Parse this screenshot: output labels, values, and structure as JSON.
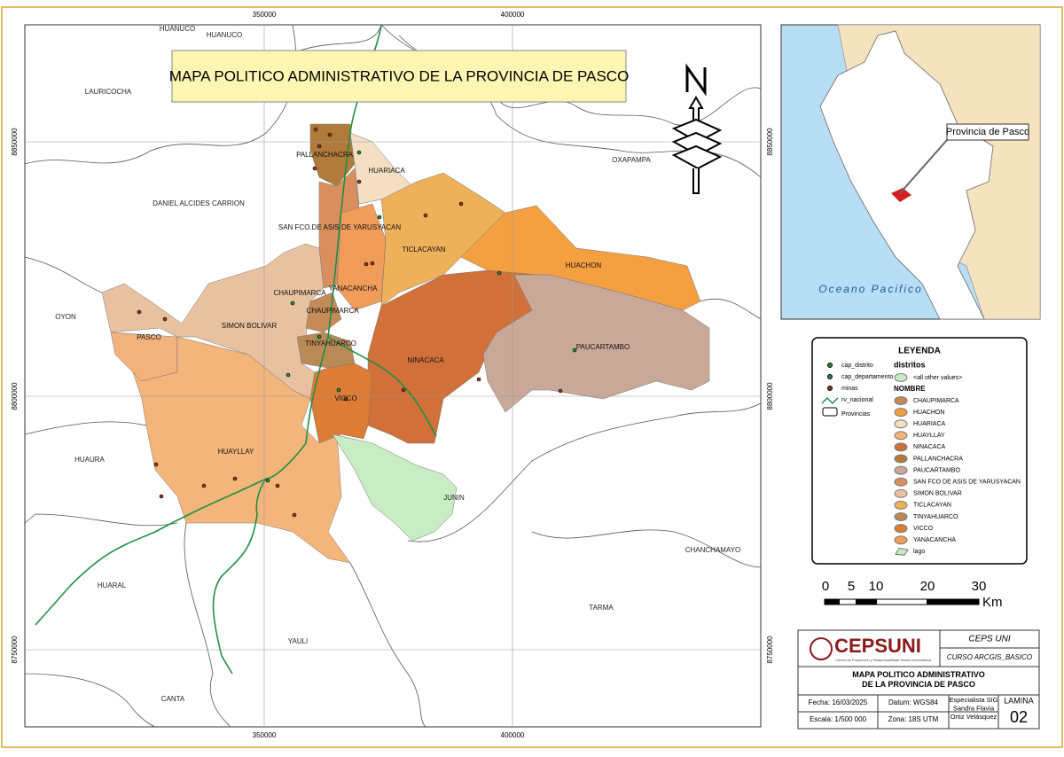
{
  "title": "MAPA POLITICO ADMINISTRATIVO DE LA PROVINCIA DE PASCO",
  "grid_labels": {
    "top": [
      "350000",
      "400000"
    ],
    "bottom": [
      "350000",
      "400000"
    ],
    "left": [
      "8850000",
      "8800000",
      "8750000"
    ],
    "right": [
      "8850000",
      "8800000",
      "8750000"
    ]
  },
  "neighbors": [
    "HUANUCO",
    "HUANUCO",
    "LAURICOCHA",
    "DANIEL ALCIDES CARRION",
    "OXAPAMPA",
    "OYON",
    "HUAURA",
    "HUARAL",
    "CANTA",
    "YAULI",
    "TARMA",
    "CHANCHAMAYO",
    "JUNIN"
  ],
  "districts": [
    "PALLANCHACRA",
    "HUARIACA",
    "SAN FCO.DE ASIS DE YARUSYACAN",
    "TICLACAYAN",
    "HUACHON",
    "CHAUPIMARCA",
    "YANACANCHA",
    "CHAUPIMARCA",
    "SIMON BOLIVAR",
    "PASCO",
    "TINYAHUARCO",
    "NINACACA",
    "PAUCARTAMBO",
    "VICCO",
    "HUAYLLAY"
  ],
  "inset": {
    "ocean": "Oceano Pacifico",
    "callout": "Provincia de Pasco"
  },
  "legend": {
    "title": "LEYENDA",
    "items": [
      "cap_distrito",
      "cap_departamento",
      "minas",
      "rv_nacional",
      "Provincias"
    ],
    "layer": "distritos",
    "other": "<all other values>",
    "field": "NOMBRE",
    "classes": [
      {
        "name": "CHAUPIMARCA",
        "color": "#c48a58"
      },
      {
        "name": "HUACHON",
        "color": "#f4a040"
      },
      {
        "name": "HUARIACA",
        "color": "#f5dfc4"
      },
      {
        "name": "HUAYLLAY",
        "color": "#f4b57a"
      },
      {
        "name": "NINACACA",
        "color": "#d2703a"
      },
      {
        "name": "PALLANCHACRA",
        "color": "#b07a3a"
      },
      {
        "name": "PAUCARTAMBO",
        "color": "#c9a898"
      },
      {
        "name": "SAN FCO DE ASIS DE YARUSYACAN",
        "color": "#d98e5e"
      },
      {
        "name": "SIMON BOLIVAR",
        "color": "#e8c2a0"
      },
      {
        "name": "TICLACAYAN",
        "color": "#eeb059"
      },
      {
        "name": "TINYAHUARCO",
        "color": "#b98a55"
      },
      {
        "name": "VICCO",
        "color": "#dd7c35"
      },
      {
        "name": "YANACANCHA",
        "color": "#f29c5a"
      }
    ],
    "lake": "lago"
  },
  "scale": {
    "labels": [
      "0",
      "5",
      "10",
      "20",
      "30"
    ],
    "unit": "Km"
  },
  "title_block": {
    "logo": "CEPSUNI",
    "logo_sub": "Centro de Proyección y Responsabilidad Social Universitaria",
    "org": "CEPS UNI",
    "course": "CURSO ARCGIS_BASICO",
    "map_title": "MAPA POLITICO ADMINISTRATIVO\nDE LA PROVINCIA DE PASCO",
    "date": "Fecha: 16/03/2025",
    "datum": "Datum: WGS84",
    "author": "Especialista SIG\nSandra Flavia\nOrtiz Velásquez",
    "sheet_label": "LAMINA",
    "sheet": "02",
    "scale": "Escala: 1/500 000",
    "zone": "Zona: 18S UTM"
  }
}
